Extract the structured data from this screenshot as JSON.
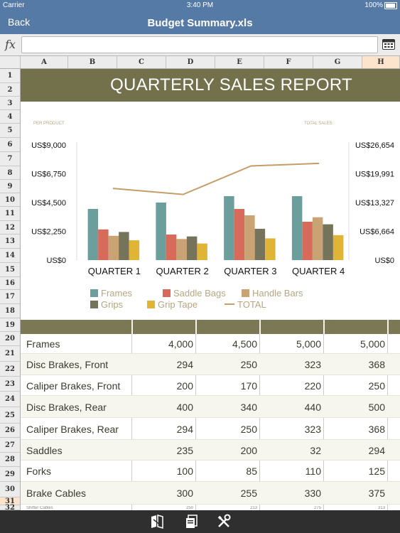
{
  "status": {
    "carrier": "Carrier",
    "time": "3:40 PM",
    "battery": "100%"
  },
  "nav": {
    "back": "Back",
    "title": "Budget Summary.xls"
  },
  "formula": {
    "fx": "fx",
    "value": ""
  },
  "columns": [
    "A",
    "B",
    "C",
    "D",
    "E",
    "F",
    "G",
    "H"
  ],
  "selected_column": "H",
  "rows": [
    "1",
    "2",
    "3",
    "4",
    "5",
    "6",
    "7",
    "8",
    "9",
    "10",
    "11",
    "12",
    "13",
    "14",
    "15",
    "16",
    "17",
    "18",
    "19",
    "20",
    "21",
    "22",
    "23",
    "24",
    "25",
    "26",
    "27",
    "28",
    "29",
    "30",
    "31",
    "32"
  ],
  "selected_row": "31",
  "sheet": {
    "title": "QUARTERLY SALES REPORT"
  },
  "chart_data": {
    "type": "bar",
    "left_axis_label": "PER PRODUCT",
    "right_axis_label": "TOTAL SALES",
    "categories": [
      "QUARTER 1",
      "QUARTER 2",
      "QUARTER 3",
      "QUARTER 4"
    ],
    "y_ticks": [
      "US$0",
      "US$2,250",
      "US$4,500",
      "US$6,750",
      "US$9,000"
    ],
    "y2_ticks": [
      "US$0",
      "US$6,664",
      "US$13,327",
      "US$19,991",
      "US$26,654"
    ],
    "ylim": [
      0,
      9000
    ],
    "y2lim": [
      0,
      26654
    ],
    "series": [
      {
        "name": "Frames",
        "color": "#6c9e9b",
        "values": [
          4000,
          4500,
          5000,
          5000
        ]
      },
      {
        "name": "Saddle Bags",
        "color": "#d66b5c",
        "values": [
          2400,
          2000,
          4000,
          3000
        ]
      },
      {
        "name": "Handle Bars",
        "color": "#c9a374",
        "values": [
          1900,
          1650,
          3500,
          3350
        ]
      },
      {
        "name": "Grips",
        "color": "#75745a",
        "values": [
          2200,
          1850,
          2450,
          2800
        ]
      },
      {
        "name": "Grip Tape",
        "color": "#e0b437",
        "values": [
          1550,
          1300,
          1700,
          1950
        ]
      }
    ],
    "line_series": {
      "name": "TOTAL",
      "color": "#c69c68",
      "values": [
        16600,
        15200,
        21800,
        22400
      ]
    },
    "legend": [
      {
        "name": "Frames",
        "color": "#6c9e9b",
        "shape": "square"
      },
      {
        "name": "Saddle Bags",
        "color": "#d66b5c",
        "shape": "square"
      },
      {
        "name": "Handle Bars",
        "color": "#c9a374",
        "shape": "square"
      },
      {
        "name": "Grips",
        "color": "#75745a",
        "shape": "square"
      },
      {
        "name": "Grip Tape",
        "color": "#e0b437",
        "shape": "square"
      },
      {
        "name": "TOTAL",
        "color": "#c69c68",
        "shape": "line"
      }
    ]
  },
  "table": {
    "rows": [
      {
        "label": "Frames",
        "values": [
          "4,000",
          "4,500",
          "5,000",
          "5,000"
        ]
      },
      {
        "label": "Disc Brakes, Front",
        "values": [
          "294",
          "250",
          "323",
          "368"
        ]
      },
      {
        "label": "Caliper Brakes, Front",
        "values": [
          "200",
          "170",
          "220",
          "250"
        ]
      },
      {
        "label": "Disc Brakes, Rear",
        "values": [
          "400",
          "340",
          "440",
          "500"
        ]
      },
      {
        "label": "Caliper Brakes, Rear",
        "values": [
          "294",
          "250",
          "323",
          "368"
        ]
      },
      {
        "label": "Saddles",
        "values": [
          "235",
          "200",
          "32",
          "294"
        ]
      },
      {
        "label": "Forks",
        "values": [
          "100",
          "85",
          "110",
          "125"
        ]
      },
      {
        "label": "Brake Cables",
        "values": [
          "300",
          "255",
          "330",
          "375"
        ]
      }
    ],
    "partial_row": {
      "label": "Shifter Cables",
      "values": [
        "250",
        "213",
        "275",
        "313"
      ]
    }
  },
  "colors": {
    "bar_bg": "#557aa6",
    "title_bg": "#73714c",
    "table_head_bg": "#7b7955",
    "toolbar_bg": "#2f2f2f"
  },
  "toolbar": {
    "icons": [
      "book-icon",
      "copy-icon",
      "tools-icon"
    ]
  }
}
